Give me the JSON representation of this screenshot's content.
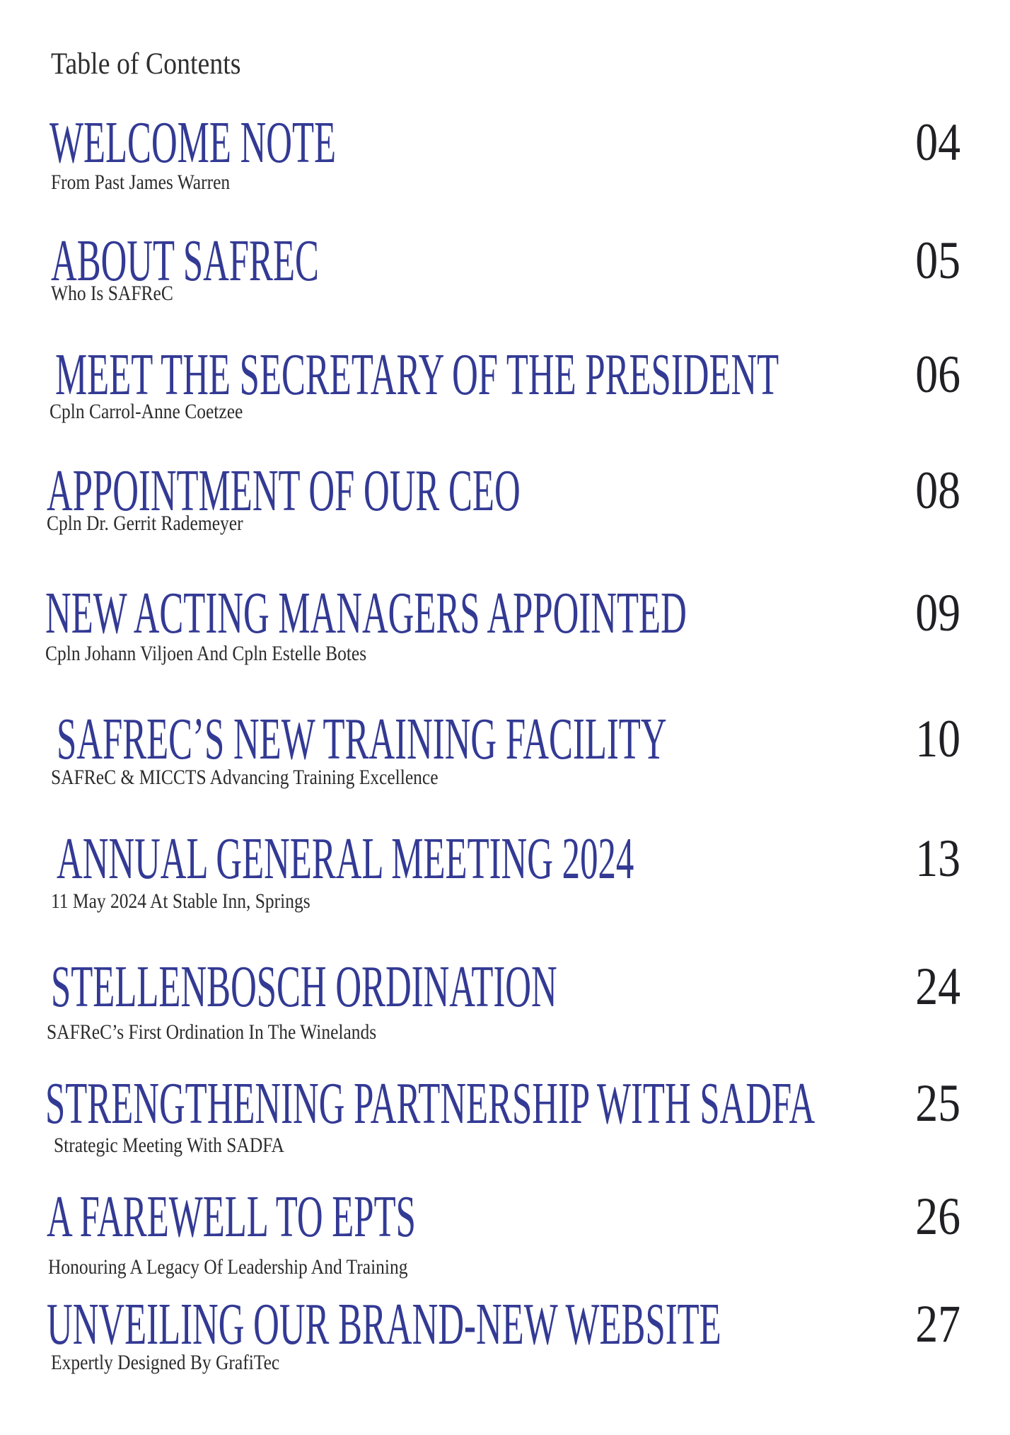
{
  "page": {
    "header": "Table of Contents"
  },
  "colors": {
    "background": "#ffffff",
    "title_blue": "#333a94",
    "text_dark": "#2c2c2c",
    "number_dark": "#202024"
  },
  "entries": [
    {
      "title": "WELCOME NOTE",
      "subtitle": "From Past James Warren",
      "page": "04"
    },
    {
      "title": "ABOUT SAFREC",
      "subtitle": "Who Is SAFReC",
      "page": "05"
    },
    {
      "title": "MEET THE SECRETARY OF THE PRESIDENT",
      "subtitle": "Cpln Carrol-Anne Coetzee",
      "page": "06"
    },
    {
      "title": "APPOINTMENT OF OUR CEO",
      "subtitle": "Cpln Dr. Gerrit Rademeyer",
      "page": "08"
    },
    {
      "title": "NEW ACTING MANAGERS APPOINTED",
      "subtitle": "Cpln Johann Viljoen And Cpln Estelle Botes",
      "page": "09"
    },
    {
      "title": "SAFREC’S NEW TRAINING FACILITY",
      "subtitle": "SAFReC & MICCTS Advancing Training Excellence",
      "page": "10"
    },
    {
      "title": "ANNUAL GENERAL MEETING 2024",
      "subtitle": "11 May 2024 At Stable Inn, Springs",
      "page": "13"
    },
    {
      "title": "STELLENBOSCH ORDINATION",
      "subtitle": "SAFReC’s First Ordination In The Winelands",
      "page": "24"
    },
    {
      "title": "STRENGTHENING PARTNERSHIP WITH SADFA",
      "subtitle": "Strategic Meeting With SADFA",
      "page": "25"
    },
    {
      "title": "A FAREWELL TO EPTS",
      "subtitle": "Honouring A Legacy Of Leadership And Training",
      "page": "26"
    },
    {
      "title": "UNVEILING OUR BRAND-NEW WEBSITE",
      "subtitle": "Expertly Designed By GrafiTec",
      "page": "27"
    }
  ]
}
